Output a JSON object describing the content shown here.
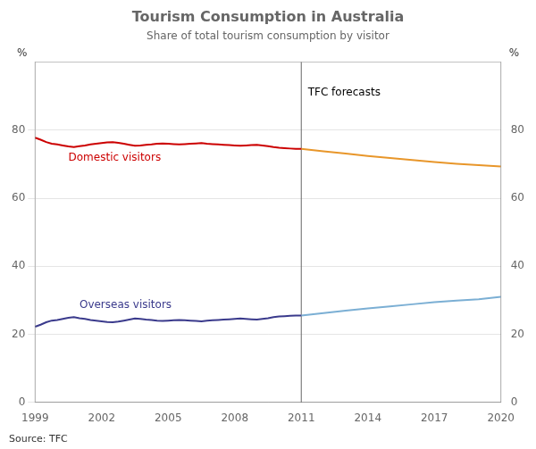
{
  "chart_data": {
    "type": "line",
    "title": "Tourism Consumption in Australia",
    "subtitle": "Share of total tourism consumption by visitor",
    "source": "Source: TFC",
    "ylabel": "%",
    "y2label": "%",
    "xlim": [
      1999,
      2020
    ],
    "xticks": [
      1999,
      2002,
      2005,
      2008,
      2011,
      2014,
      2017,
      2020
    ],
    "ylim": [
      0,
      100
    ],
    "yticks": [
      0,
      20,
      40,
      60,
      80
    ],
    "y2lim": [
      0,
      100
    ],
    "y2ticks": [
      0,
      20,
      40,
      60,
      80
    ],
    "grid": "y",
    "legend": false,
    "reference_lines": [
      {
        "x": 2011,
        "color": "#666666"
      }
    ],
    "annotations": [
      {
        "text": "TFC forecasts",
        "x": 2011.3,
        "y": 91
      },
      {
        "text": "Domestic visitors",
        "x": 2000.5,
        "y": 71.8,
        "color": "#cc0000"
      },
      {
        "text": "Overseas visitors",
        "x": 2001.0,
        "y": 28.5,
        "color": "#3a3a8c"
      }
    ],
    "series": [
      {
        "color": "#cc0000",
        "x": [
          1999,
          1999.25,
          1999.5,
          1999.75,
          2000,
          2000.25,
          2000.5,
          2000.75,
          2001,
          2001.25,
          2001.5,
          2001.75,
          2002,
          2002.25,
          2002.5,
          2002.75,
          2003,
          2003.25,
          2003.5,
          2003.75,
          2004,
          2004.25,
          2004.5,
          2004.75,
          2005,
          2005.25,
          2005.5,
          2005.75,
          2006,
          2006.25,
          2006.5,
          2006.75,
          2007,
          2007.25,
          2007.5,
          2007.75,
          2008,
          2008.25,
          2008.5,
          2008.75,
          2009,
          2009.25,
          2009.5,
          2009.75,
          2010,
          2010.25,
          2010.5,
          2010.75,
          2011
        ],
        "values": [
          77.8,
          77.2,
          76.5,
          76.0,
          75.8,
          75.5,
          75.2,
          75.0,
          75.3,
          75.5,
          75.8,
          76.0,
          76.2,
          76.4,
          76.5,
          76.3,
          76.0,
          75.7,
          75.4,
          75.5,
          75.7,
          75.8,
          76.0,
          76.1,
          76.0,
          75.9,
          75.8,
          75.9,
          76.0,
          76.1,
          76.2,
          76.0,
          75.9,
          75.8,
          75.7,
          75.6,
          75.5,
          75.4,
          75.5,
          75.6,
          75.7,
          75.5,
          75.3,
          75.0,
          74.8,
          74.7,
          74.6,
          74.5,
          74.5
        ]
      },
      {
        "color": "#e8962a",
        "x": [
          2011,
          2012,
          2013,
          2014,
          2015,
          2016,
          2017,
          2018,
          2019,
          2020
        ],
        "values": [
          74.5,
          73.8,
          73.1,
          72.4,
          71.8,
          71.2,
          70.6,
          70.1,
          69.7,
          69.3
        ]
      },
      {
        "color": "#3a3a8c",
        "x": [
          1999,
          1999.25,
          1999.5,
          1999.75,
          2000,
          2000.25,
          2000.5,
          2000.75,
          2001,
          2001.25,
          2001.5,
          2001.75,
          2002,
          2002.25,
          2002.5,
          2002.75,
          2003,
          2003.25,
          2003.5,
          2003.75,
          2004,
          2004.25,
          2004.5,
          2004.75,
          2005,
          2005.25,
          2005.5,
          2005.75,
          2006,
          2006.25,
          2006.5,
          2006.75,
          2007,
          2007.25,
          2007.5,
          2007.75,
          2008,
          2008.25,
          2008.5,
          2008.75,
          2009,
          2009.25,
          2009.5,
          2009.75,
          2010,
          2010.25,
          2010.5,
          2010.75,
          2011
        ],
        "values": [
          22.2,
          22.8,
          23.5,
          24.0,
          24.2,
          24.5,
          24.8,
          25.0,
          24.7,
          24.5,
          24.2,
          24.0,
          23.8,
          23.6,
          23.5,
          23.7,
          24.0,
          24.3,
          24.6,
          24.5,
          24.3,
          24.2,
          24.0,
          23.9,
          24.0,
          24.1,
          24.2,
          24.1,
          24.0,
          23.9,
          23.8,
          24.0,
          24.1,
          24.2,
          24.3,
          24.4,
          24.5,
          24.6,
          24.5,
          24.4,
          24.3,
          24.5,
          24.7,
          25.0,
          25.2,
          25.3,
          25.4,
          25.5,
          25.5
        ]
      },
      {
        "color": "#7bafd4",
        "x": [
          2011,
          2012,
          2013,
          2014,
          2015,
          2016,
          2017,
          2018,
          2019,
          2020
        ],
        "values": [
          25.5,
          26.2,
          26.9,
          27.6,
          28.2,
          28.8,
          29.4,
          29.9,
          30.3,
          31.0
        ]
      }
    ]
  }
}
